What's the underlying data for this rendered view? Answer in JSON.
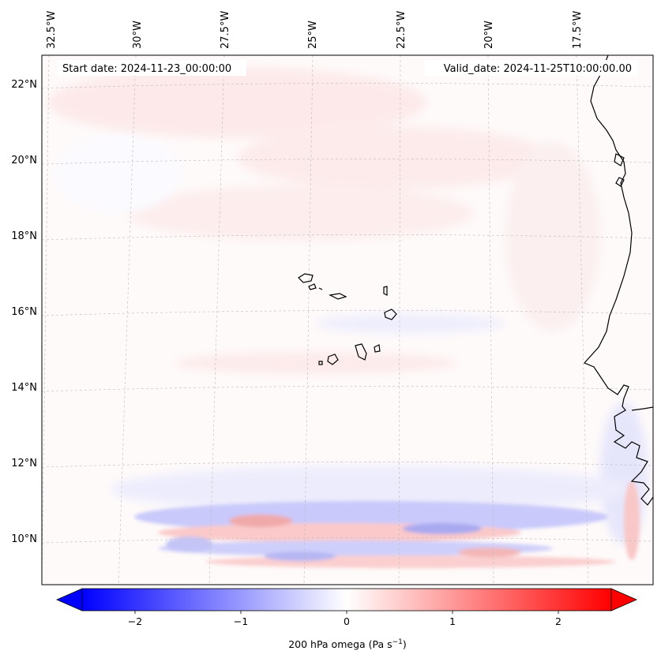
{
  "map": {
    "start_date": "Start date: 2024-11-23_00:00:00",
    "valid_date": "Valid_date: 2024-11-25T10:00:00.00",
    "lon_labels": [
      "32.5°W",
      "30°W",
      "27.5°W",
      "25°W",
      "22.5°W",
      "20°W",
      "17.5°W"
    ],
    "lat_labels": [
      "22°N",
      "20°N",
      "18°N",
      "16°N",
      "14°N",
      "12°N",
      "10°N"
    ],
    "colorbar": {
      "title": "200 hPa omega (Pa s",
      "title_sup": "−1",
      "title_end": ")",
      "tick_labels": [
        "−2",
        "−1",
        "0",
        "1",
        "2"
      ],
      "range": [
        -2.5,
        2.5
      ],
      "low_color": "#0000ff",
      "mid_color": "#ffffff",
      "high_color": "#ff0000"
    },
    "coast_color": "#000000",
    "grid_color": "#bbbbbb"
  }
}
